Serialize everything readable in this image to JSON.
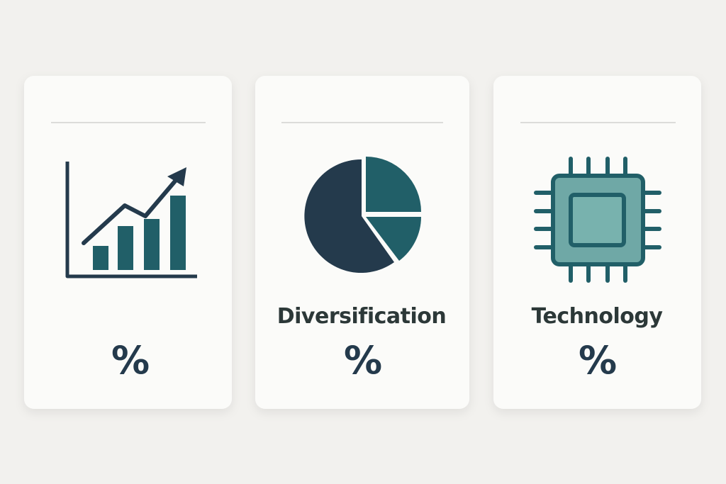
{
  "cards": [
    {
      "value": "%"
    },
    {
      "label": "Diversification",
      "value": "%"
    },
    {
      "label": "Technology",
      "value": "%"
    }
  ]
}
